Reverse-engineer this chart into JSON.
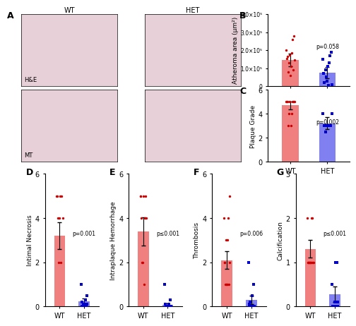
{
  "panel_B": {
    "title": "B",
    "ylabel": "Atheroma area (μm²)",
    "ylim": [
      0,
      400000.0
    ],
    "yticks": [
      0,
      100000.0,
      200000.0,
      300000.0,
      400000.0
    ],
    "ytick_labels": [
      "0",
      "1.0×10⁵",
      "2.0×10⁵",
      "3.0×10⁵",
      "4.0×10⁵"
    ],
    "bar_WT_mean": 145000,
    "bar_WT_err": 35000,
    "bar_HET_mean": 75000,
    "bar_HET_err": 30000,
    "WT_points": [
      280000,
      260000,
      200000,
      185000,
      175000,
      165000,
      155000,
      145000,
      130000,
      110000,
      90000,
      80000,
      60000
    ],
    "HET_points": [
      190000,
      170000,
      150000,
      130000,
      110000,
      90000,
      70000,
      50000,
      30000,
      20000,
      10000,
      5000
    ],
    "pvalue": "p=0.058",
    "bar_color_WT": "#F08080",
    "bar_color_HET": "#8080F0",
    "dot_color_WT": "#CC0000",
    "dot_color_HET": "#0000CC"
  },
  "panel_C": {
    "title": "C",
    "ylabel": "Plaque Grade",
    "ylim": [
      0,
      6
    ],
    "yticks": [
      0,
      2,
      4,
      6
    ],
    "bar_WT_mean": 4.7,
    "bar_WT_err": 0.3,
    "bar_HET_mean": 3.2,
    "bar_HET_err": 0.5,
    "WT_points": [
      5,
      5,
      5,
      5,
      5,
      5,
      5,
      5,
      4,
      4,
      3,
      3
    ],
    "HET_points": [
      4,
      4,
      3,
      3,
      3,
      3,
      2.5
    ],
    "pvalue": "p=0.002",
    "bar_color_WT": "#F08080",
    "bar_color_HET": "#8080F0",
    "dot_color_WT": "#CC0000",
    "dot_color_HET": "#0000CC"
  },
  "panel_D": {
    "title": "D",
    "ylabel": "Intimal Necrosis",
    "ylim": [
      0,
      6
    ],
    "yticks": [
      0,
      2,
      4,
      6
    ],
    "bar_WT_mean": 3.2,
    "bar_WT_err": 0.6,
    "bar_HET_mean": 0.25,
    "bar_HET_err": 0.12,
    "WT_points": [
      5,
      5,
      5,
      5,
      4,
      4,
      4,
      2,
      2
    ],
    "HET_points": [
      1,
      0.5,
      0.3,
      0.2,
      0.1,
      0.1,
      0.1,
      0,
      0,
      0,
      0,
      0,
      0
    ],
    "pvalue": "p=0.001",
    "bar_color_WT": "#F08080",
    "bar_color_HET": "#8080F0",
    "dot_color_WT": "#CC0000",
    "dot_color_HET": "#0000CC"
  },
  "panel_E": {
    "title": "E",
    "ylabel": "Intraplaque Hemorrhage",
    "ylim": [
      0,
      6
    ],
    "yticks": [
      0,
      2,
      4,
      6
    ],
    "bar_WT_mean": 3.4,
    "bar_WT_err": 0.65,
    "bar_HET_mean": 0.08,
    "bar_HET_err": 0.06,
    "WT_points": [
      5,
      5,
      5,
      5,
      4,
      4,
      4,
      2,
      2,
      1
    ],
    "HET_points": [
      1,
      0.3,
      0.1,
      0.1,
      0,
      0,
      0,
      0,
      0,
      0,
      0,
      0,
      0
    ],
    "pvalue": "p≤0.001",
    "bar_color_WT": "#F08080",
    "bar_color_HET": "#8080F0",
    "dot_color_WT": "#CC0000",
    "dot_color_HET": "#0000CC"
  },
  "panel_F": {
    "title": "F",
    "ylabel": "Thrombosis",
    "ylim": [
      0,
      6
    ],
    "yticks": [
      0,
      2,
      4,
      6
    ],
    "bar_WT_mean": 2.1,
    "bar_WT_err": 0.4,
    "bar_HET_mean": 0.3,
    "bar_HET_err": 0.2,
    "WT_points": [
      5,
      4,
      4,
      3,
      3,
      2,
      2,
      2,
      1,
      1,
      1,
      1,
      1
    ],
    "HET_points": [
      2,
      1,
      0.5,
      0.2,
      0.1,
      0,
      0,
      0,
      0,
      0
    ],
    "pvalue": "p=0.006",
    "bar_color_WT": "#F08080",
    "bar_color_HET": "#8080F0",
    "dot_color_WT": "#CC0000",
    "dot_color_HET": "#0000CC"
  },
  "panel_G": {
    "title": "G",
    "ylabel": "Calcification",
    "ylim": [
      0,
      3
    ],
    "yticks": [
      0,
      1,
      2,
      3
    ],
    "bar_WT_mean": 1.3,
    "bar_WT_err": 0.2,
    "bar_HET_mean": 0.28,
    "bar_HET_err": 0.18,
    "WT_points": [
      2,
      2,
      2,
      1,
      1,
      1,
      1,
      1,
      1,
      1,
      1,
      1,
      1,
      1
    ],
    "HET_points": [
      1,
      1,
      0.5,
      0.1,
      0.1,
      0,
      0,
      0,
      0,
      0,
      0,
      0,
      0
    ],
    "pvalue": "p≤0.001",
    "bar_color_WT": "#F08080",
    "bar_color_HET": "#8080F0",
    "dot_color_WT": "#CC0000",
    "dot_color_HET": "#0000CC"
  },
  "xlabel_WT": "WT",
  "xlabel_HET": "HET",
  "bar_width": 0.5,
  "img_placeholder_color": "#E8D0D8",
  "background_color": "#FFFFFF"
}
